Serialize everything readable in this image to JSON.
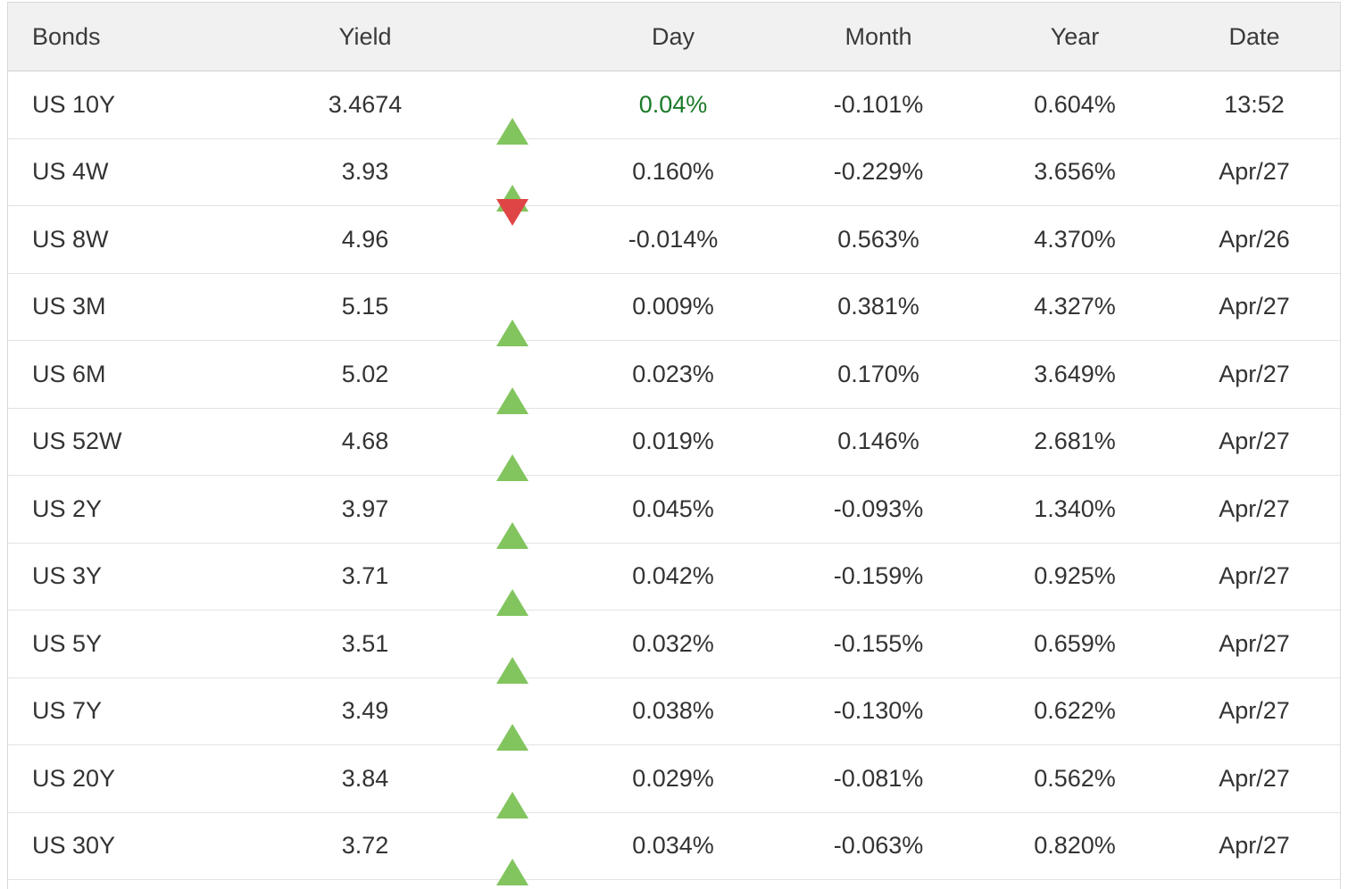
{
  "header": {
    "columns": [
      "Bonds",
      "Yield",
      "",
      "Day",
      "Month",
      "Year",
      "Date"
    ]
  },
  "rows": [
    {
      "bond": "US 10Y",
      "yield": "3.4674",
      "direction": "up",
      "day": "0.04%",
      "day_highlight": true,
      "month": "-0.101%",
      "year": "0.604%",
      "date": "13:52"
    },
    {
      "bond": "US 4W",
      "yield": "3.93",
      "direction": "up",
      "day": "0.160%",
      "day_highlight": false,
      "month": "-0.229%",
      "year": "3.656%",
      "date": "Apr/27"
    },
    {
      "bond": "US 8W",
      "yield": "4.96",
      "direction": "down",
      "day": "-0.014%",
      "day_highlight": false,
      "month": "0.563%",
      "year": "4.370%",
      "date": "Apr/26"
    },
    {
      "bond": "US 3M",
      "yield": "5.15",
      "direction": "up",
      "day": "0.009%",
      "day_highlight": false,
      "month": "0.381%",
      "year": "4.327%",
      "date": "Apr/27"
    },
    {
      "bond": "US 6M",
      "yield": "5.02",
      "direction": "up",
      "day": "0.023%",
      "day_highlight": false,
      "month": "0.170%",
      "year": "3.649%",
      "date": "Apr/27"
    },
    {
      "bond": "US 52W",
      "yield": "4.68",
      "direction": "up",
      "day": "0.019%",
      "day_highlight": false,
      "month": "0.146%",
      "year": "2.681%",
      "date": "Apr/27"
    },
    {
      "bond": "US 2Y",
      "yield": "3.97",
      "direction": "up",
      "day": "0.045%",
      "day_highlight": false,
      "month": "-0.093%",
      "year": "1.340%",
      "date": "Apr/27"
    },
    {
      "bond": "US 3Y",
      "yield": "3.71",
      "direction": "up",
      "day": "0.042%",
      "day_highlight": false,
      "month": "-0.159%",
      "year": "0.925%",
      "date": "Apr/27"
    },
    {
      "bond": "US 5Y",
      "yield": "3.51",
      "direction": "up",
      "day": "0.032%",
      "day_highlight": false,
      "month": "-0.155%",
      "year": "0.659%",
      "date": "Apr/27"
    },
    {
      "bond": "US 7Y",
      "yield": "3.49",
      "direction": "up",
      "day": "0.038%",
      "day_highlight": false,
      "month": "-0.130%",
      "year": "0.622%",
      "date": "Apr/27"
    },
    {
      "bond": "US 20Y",
      "yield": "3.84",
      "direction": "up",
      "day": "0.029%",
      "day_highlight": false,
      "month": "-0.081%",
      "year": "0.562%",
      "date": "Apr/27"
    },
    {
      "bond": "US 30Y",
      "yield": "3.72",
      "direction": "up",
      "day": "0.034%",
      "day_highlight": false,
      "month": "-0.063%",
      "year": "0.820%",
      "date": "Apr/27"
    }
  ],
  "colors": {
    "up_arrow": "#82c45e",
    "down_arrow": "#e04545",
    "day_highlight_text": "#1a7a28",
    "header_bg": "#f1f1f2",
    "text": "#333333",
    "row_border": "#e3e3e3"
  }
}
